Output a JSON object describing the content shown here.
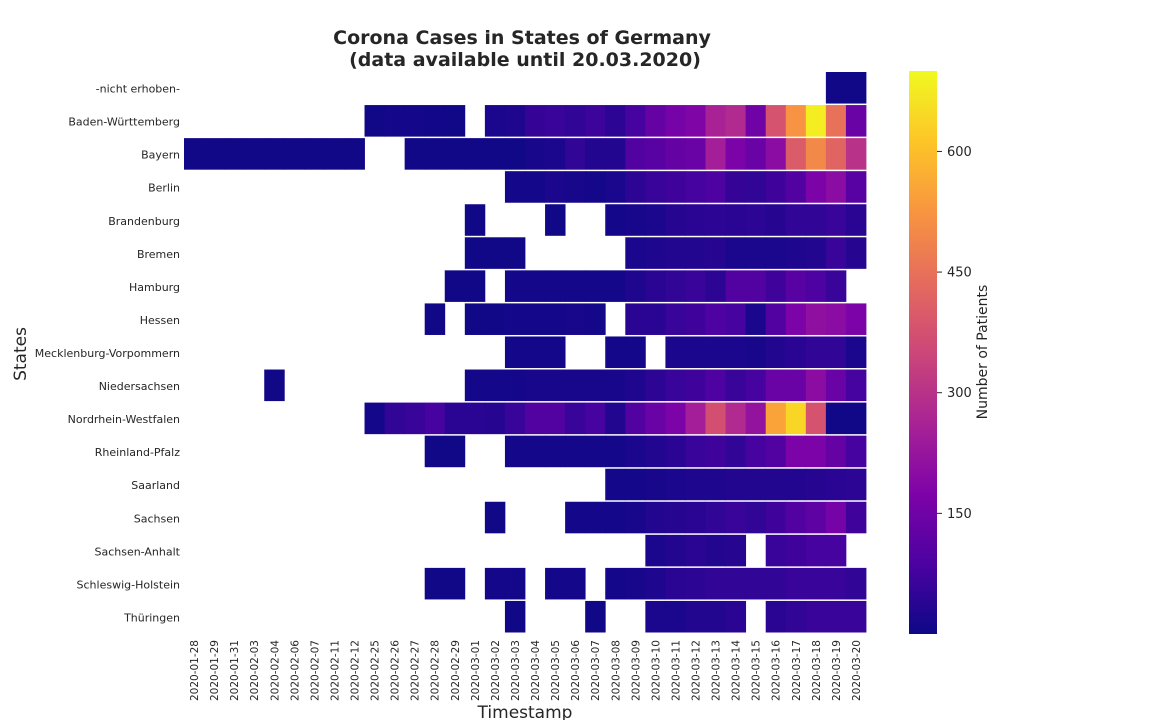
{
  "chart_data": {
    "type": "heatmap",
    "title_line1": "Corona Cases in States of Germany",
    "title_line2": "(data available until 20.03.2020)",
    "xlabel": "Timestamp",
    "ylabel": "States",
    "colorbar_label": "Number of Patients",
    "colorbar_range": [
      0,
      700
    ],
    "colorbar_ticks": [
      "150",
      "300",
      "450",
      "600"
    ],
    "colormap": "plasma",
    "x": [
      "2020-01-28",
      "2020-01-29",
      "2020-01-31",
      "2020-02-03",
      "2020-02-04",
      "2020-02-06",
      "2020-02-07",
      "2020-02-11",
      "2020-02-12",
      "2020-02-25",
      "2020-02-26",
      "2020-02-27",
      "2020-02-28",
      "2020-02-29",
      "2020-03-01",
      "2020-03-02",
      "2020-03-03",
      "2020-03-04",
      "2020-03-05",
      "2020-03-06",
      "2020-03-07",
      "2020-03-08",
      "2020-03-09",
      "2020-03-10",
      "2020-03-11",
      "2020-03-12",
      "2020-03-13",
      "2020-03-14",
      "2020-03-15",
      "2020-03-16",
      "2020-03-17",
      "2020-03-18",
      "2020-03-19",
      "2020-03-20"
    ],
    "y": [
      "-nicht erhoben-",
      "Baden-Württemberg",
      "Bayern",
      "Berlin",
      "Brandenburg",
      "Bremen",
      "Hamburg",
      "Hessen",
      "Mecklenburg-Vorpommern",
      "Niedersachsen",
      "Nordrhein-Westfalen",
      "Rheinland-Pfalz",
      "Saarland",
      "Sachsen",
      "Sachsen-Anhalt",
      "Schleswig-Holstein",
      "Thüringen"
    ],
    "values": [
      [
        null,
        null,
        null,
        null,
        null,
        null,
        null,
        null,
        null,
        null,
        null,
        null,
        null,
        null,
        null,
        null,
        null,
        null,
        null,
        null,
        null,
        null,
        null,
        null,
        null,
        null,
        null,
        null,
        null,
        null,
        null,
        null,
        5,
        5
      ],
      [
        null,
        null,
        null,
        null,
        null,
        null,
        null,
        null,
        null,
        5,
        10,
        10,
        8,
        5,
        null,
        20,
        25,
        55,
        60,
        50,
        65,
        45,
        80,
        130,
        160,
        180,
        260,
        280,
        150,
        380,
        520,
        680,
        450,
        140
      ],
      [
        5,
        5,
        5,
        5,
        5,
        5,
        5,
        5,
        5,
        null,
        null,
        5,
        5,
        5,
        5,
        5,
        5,
        15,
        20,
        50,
        30,
        30,
        100,
        110,
        130,
        140,
        250,
        170,
        140,
        200,
        400,
        500,
        420,
        300
      ],
      [
        null,
        null,
        null,
        null,
        null,
        null,
        null,
        null,
        null,
        null,
        null,
        null,
        null,
        null,
        null,
        null,
        10,
        10,
        20,
        15,
        10,
        20,
        45,
        60,
        70,
        80,
        90,
        55,
        50,
        70,
        100,
        170,
        200,
        110
      ],
      [
        null,
        null,
        null,
        null,
        null,
        null,
        null,
        null,
        null,
        null,
        null,
        null,
        null,
        null,
        5,
        null,
        null,
        null,
        5,
        null,
        null,
        10,
        15,
        20,
        35,
        40,
        45,
        40,
        45,
        35,
        50,
        50,
        60,
        40
      ],
      [
        null,
        null,
        null,
        null,
        null,
        null,
        null,
        null,
        null,
        null,
        null,
        null,
        null,
        null,
        5,
        5,
        5,
        null,
        null,
        null,
        null,
        null,
        20,
        25,
        30,
        30,
        35,
        20,
        20,
        20,
        25,
        30,
        60,
        35
      ],
      [
        null,
        null,
        null,
        null,
        null,
        null,
        null,
        null,
        null,
        null,
        null,
        null,
        null,
        5,
        5,
        null,
        10,
        10,
        10,
        10,
        10,
        10,
        25,
        40,
        50,
        60,
        45,
        100,
        100,
        70,
        110,
        90,
        60,
        null
      ],
      [
        null,
        null,
        null,
        null,
        null,
        null,
        null,
        null,
        null,
        null,
        null,
        null,
        5,
        null,
        5,
        5,
        10,
        10,
        10,
        15,
        10,
        null,
        40,
        40,
        60,
        70,
        90,
        80,
        20,
        100,
        170,
        210,
        200,
        170
      ],
      [
        null,
        null,
        null,
        null,
        null,
        null,
        null,
        null,
        null,
        null,
        null,
        null,
        null,
        null,
        null,
        null,
        10,
        10,
        10,
        null,
        null,
        10,
        10,
        null,
        20,
        20,
        20,
        20,
        15,
        30,
        40,
        50,
        50,
        20
      ],
      [
        null,
        null,
        null,
        null,
        5,
        null,
        null,
        null,
        null,
        null,
        null,
        null,
        null,
        null,
        10,
        10,
        10,
        15,
        15,
        15,
        15,
        15,
        25,
        45,
        60,
        70,
        90,
        60,
        80,
        140,
        140,
        200,
        140,
        80
      ],
      [
        null,
        null,
        null,
        null,
        null,
        null,
        null,
        null,
        null,
        10,
        50,
        60,
        80,
        40,
        40,
        35,
        60,
        100,
        100,
        60,
        80,
        30,
        100,
        140,
        170,
        250,
        370,
        280,
        220,
        550,
        640,
        380,
        5,
        5
      ],
      [
        null,
        null,
        null,
        null,
        null,
        null,
        null,
        null,
        null,
        null,
        null,
        null,
        5,
        5,
        null,
        null,
        10,
        10,
        10,
        10,
        10,
        10,
        20,
        30,
        40,
        60,
        70,
        50,
        80,
        100,
        170,
        170,
        130,
        80
      ],
      [
        null,
        null,
        null,
        null,
        null,
        null,
        null,
        null,
        null,
        null,
        null,
        null,
        null,
        null,
        null,
        null,
        null,
        null,
        null,
        null,
        null,
        10,
        10,
        15,
        20,
        25,
        25,
        30,
        30,
        30,
        30,
        35,
        40,
        45
      ],
      [
        null,
        null,
        null,
        null,
        null,
        null,
        null,
        null,
        null,
        null,
        null,
        null,
        null,
        null,
        null,
        5,
        null,
        null,
        null,
        10,
        10,
        10,
        15,
        30,
        35,
        40,
        50,
        60,
        50,
        70,
        100,
        120,
        160,
        70
      ],
      [
        null,
        null,
        null,
        null,
        null,
        null,
        null,
        null,
        null,
        null,
        null,
        null,
        null,
        null,
        null,
        null,
        null,
        null,
        null,
        null,
        null,
        null,
        null,
        20,
        30,
        40,
        30,
        35,
        null,
        60,
        70,
        80,
        80,
        null
      ],
      [
        null,
        null,
        null,
        null,
        null,
        null,
        null,
        null,
        null,
        null,
        null,
        null,
        5,
        5,
        null,
        10,
        10,
        null,
        10,
        10,
        null,
        10,
        15,
        25,
        40,
        45,
        50,
        50,
        50,
        50,
        60,
        60,
        60,
        50
      ],
      [
        null,
        null,
        null,
        null,
        null,
        null,
        null,
        null,
        null,
        null,
        null,
        null,
        null,
        null,
        null,
        null,
        5,
        null,
        null,
        null,
        5,
        null,
        null,
        20,
        20,
        30,
        30,
        40,
        null,
        40,
        50,
        60,
        60,
        60
      ]
    ]
  }
}
